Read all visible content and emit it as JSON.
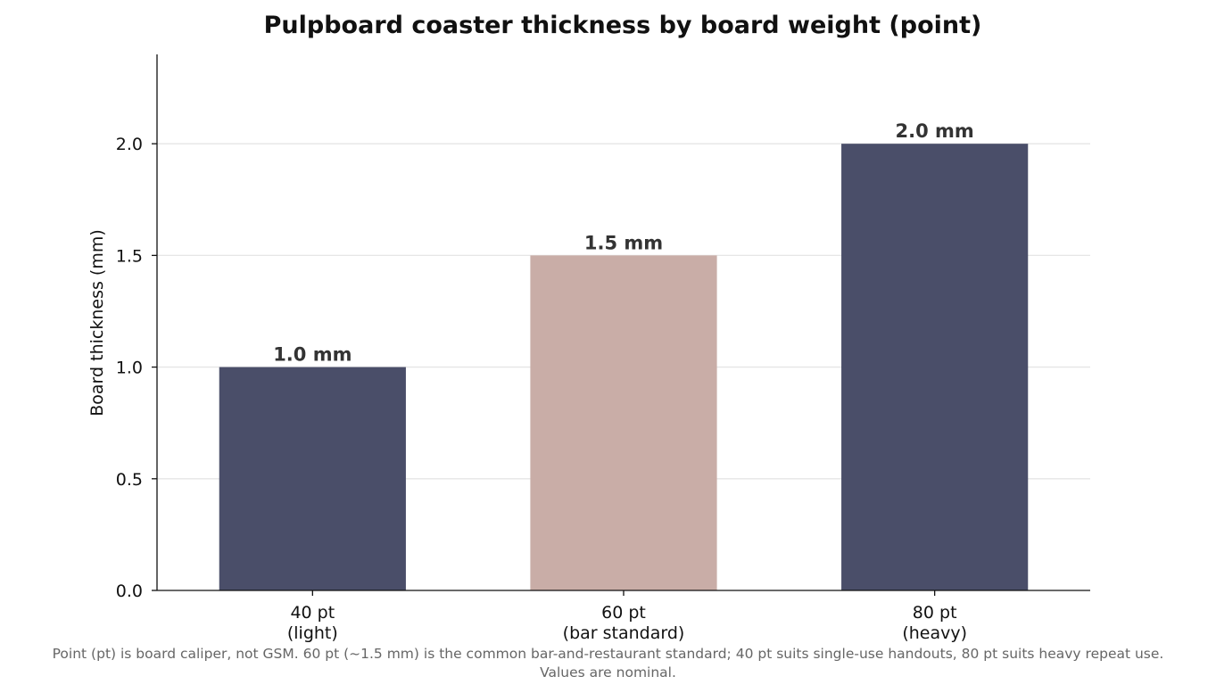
{
  "chart_data": {
    "type": "bar",
    "title": "Pulpboard coaster thickness by board weight (point)",
    "xlabel": "",
    "ylabel": "Board thickness (mm)",
    "categories": [
      [
        "40 pt",
        "(light)"
      ],
      [
        "60 pt",
        "(bar standard)"
      ],
      [
        "80 pt",
        "(heavy)"
      ]
    ],
    "values": [
      1.0,
      1.5,
      2.0
    ],
    "value_labels": [
      "1.0 mm",
      "1.5 mm",
      "2.0 mm"
    ],
    "bar_colors": [
      "#4a4e69",
      "#c9ada7",
      "#4a4e69"
    ],
    "ylim": [
      0,
      2.4
    ],
    "yticks": [
      0.0,
      0.5,
      1.0,
      1.5,
      2.0
    ],
    "ytick_labels": [
      "0.0",
      "0.5",
      "1.0",
      "1.5",
      "2.0"
    ],
    "grid": "horizontal",
    "legend": "none",
    "footnote": [
      "Point (pt) is board caliper, not GSM. 60 pt (~1.5 mm) is the common bar-and-restaurant standard; 40 pt suits single-use handouts, 80 pt suits heavy repeat use.",
      "Values are nominal."
    ]
  }
}
